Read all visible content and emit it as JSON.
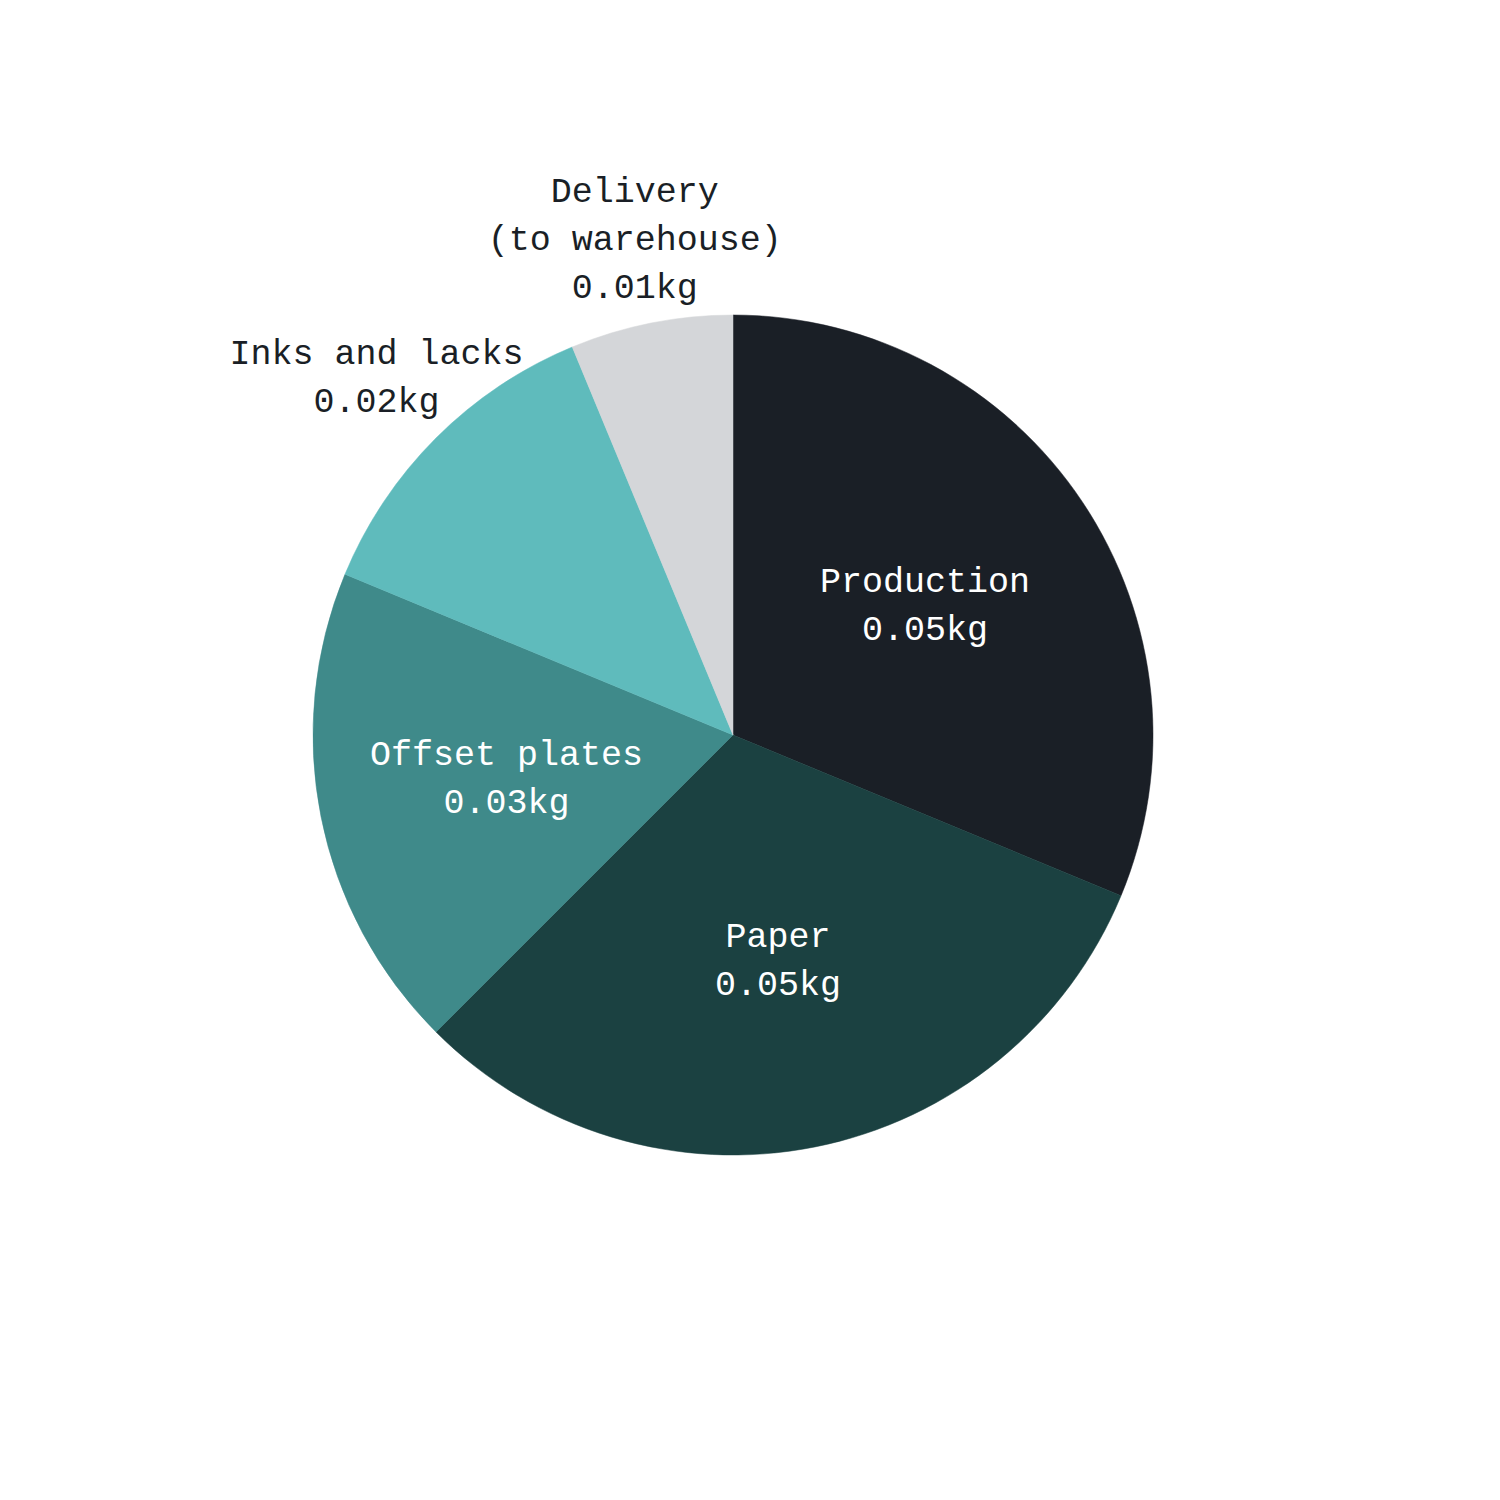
{
  "chart_data": {
    "type": "pie",
    "categories": [
      "Production",
      "Paper",
      "Offset plates",
      "Inks and lacks",
      "Delivery\n(to warehouse)"
    ],
    "values": [
      0.05,
      0.05,
      0.03,
      0.02,
      0.01
    ],
    "value_labels": [
      "0.05kg",
      "0.05kg",
      "0.03kg",
      "0.02kg",
      "0.01kg"
    ],
    "colors": [
      "#1a1f26",
      "#1b4141",
      "#3f8a8a",
      "#5fbbbc",
      "#d4d6d9"
    ],
    "data_labels": true
  }
}
